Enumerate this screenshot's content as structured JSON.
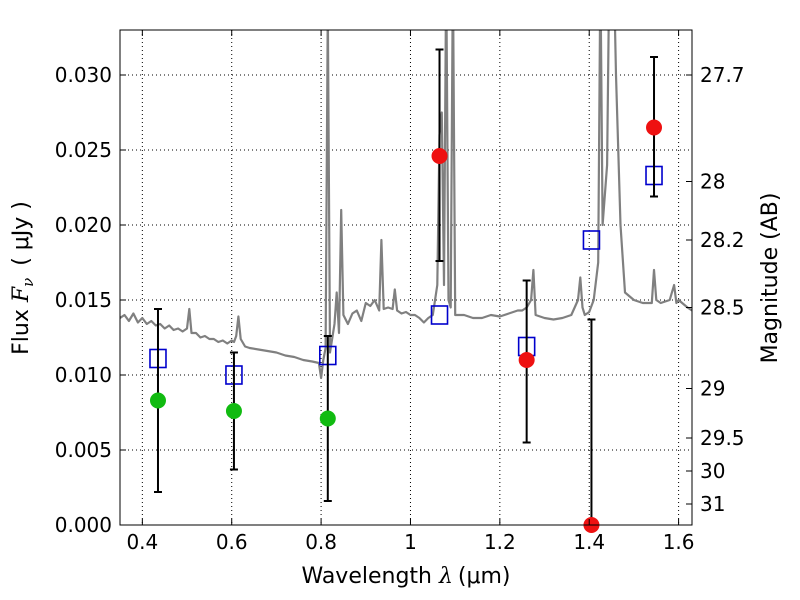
{
  "chart_data": {
    "type": "scatter",
    "xlabel": {
      "prefix": "Wavelength  ",
      "symbol": "λ",
      "unit": "(μm)"
    },
    "ylabel": {
      "prefix": "Flux  ",
      "symbol": "F",
      "sub": "ν",
      "unit": "( μJy )"
    },
    "y2label": "Magnitude (AB)",
    "xlim": [
      0.35,
      1.63
    ],
    "ylim": [
      0.0,
      0.033
    ],
    "grid": true,
    "x_ticks": [
      0.4,
      0.6,
      0.8,
      1.0,
      1.2,
      1.4,
      1.6
    ],
    "x_tick_labels": [
      "0.4",
      "0.6",
      "0.8",
      "1",
      "1.2",
      "1.4",
      "1.6"
    ],
    "y_ticks": [
      0.0,
      0.005,
      0.01,
      0.015,
      0.02,
      0.025,
      0.03
    ],
    "y_tick_labels": [
      "0.000",
      "0.005",
      "0.010",
      "0.015",
      "0.020",
      "0.025",
      "0.030"
    ],
    "mag_ticks": [
      {
        "label": "27.7",
        "flux": 0.03
      },
      {
        "label": "28",
        "flux": 0.0229
      },
      {
        "label": "28.2",
        "flux": 0.019
      },
      {
        "label": "28.5",
        "flux": 0.0145
      },
      {
        "label": "29",
        "flux": 0.0091
      },
      {
        "label": "29.5",
        "flux": 0.0058
      },
      {
        "label": "30",
        "flux": 0.0036
      },
      {
        "label": "31",
        "flux": 0.0014
      }
    ],
    "colors": {
      "spectrum": "#808080",
      "model_box": "#0000cc",
      "detection": "#ee1111",
      "nondetection": "#11bb11",
      "errorbar": "#000000"
    },
    "spectrum": {
      "name": "",
      "points": [
        [
          0.35,
          0.0138
        ],
        [
          0.36,
          0.014
        ],
        [
          0.37,
          0.0136
        ],
        [
          0.38,
          0.0141
        ],
        [
          0.39,
          0.0135
        ],
        [
          0.4,
          0.0138
        ],
        [
          0.41,
          0.0134
        ],
        [
          0.42,
          0.0136
        ],
        [
          0.43,
          0.0133
        ],
        [
          0.44,
          0.0134
        ],
        [
          0.45,
          0.0131
        ],
        [
          0.46,
          0.0133
        ],
        [
          0.47,
          0.013
        ],
        [
          0.48,
          0.0131
        ],
        [
          0.49,
          0.0129
        ],
        [
          0.5,
          0.0131
        ],
        [
          0.505,
          0.0144
        ],
        [
          0.51,
          0.0128
        ],
        [
          0.52,
          0.0128
        ],
        [
          0.53,
          0.0125
        ],
        [
          0.54,
          0.0126
        ],
        [
          0.55,
          0.0124
        ],
        [
          0.56,
          0.0124
        ],
        [
          0.57,
          0.0122
        ],
        [
          0.58,
          0.0123
        ],
        [
          0.59,
          0.0121
        ],
        [
          0.6,
          0.0123
        ],
        [
          0.605,
          0.0122
        ],
        [
          0.61,
          0.0126
        ],
        [
          0.615,
          0.0139
        ],
        [
          0.62,
          0.0124
        ],
        [
          0.63,
          0.0119
        ],
        [
          0.64,
          0.0118
        ],
        [
          0.66,
          0.0117
        ],
        [
          0.68,
          0.0116
        ],
        [
          0.7,
          0.0115
        ],
        [
          0.72,
          0.0113
        ],
        [
          0.74,
          0.0112
        ],
        [
          0.76,
          0.011
        ],
        [
          0.78,
          0.0109
        ],
        [
          0.795,
          0.0108
        ],
        [
          0.8,
          0.0098
        ],
        [
          0.805,
          0.011
        ],
        [
          0.81,
          0.0118
        ],
        [
          0.815,
          0.0345
        ],
        [
          0.82,
          0.0115
        ],
        [
          0.83,
          0.0134
        ],
        [
          0.835,
          0.0155
        ],
        [
          0.84,
          0.0128
        ],
        [
          0.845,
          0.021
        ],
        [
          0.85,
          0.014
        ],
        [
          0.86,
          0.0134
        ],
        [
          0.87,
          0.0141
        ],
        [
          0.88,
          0.0143
        ],
        [
          0.89,
          0.0136
        ],
        [
          0.9,
          0.0148
        ],
        [
          0.91,
          0.0146
        ],
        [
          0.92,
          0.015
        ],
        [
          0.93,
          0.0143
        ],
        [
          0.935,
          0.019
        ],
        [
          0.94,
          0.0144
        ],
        [
          0.95,
          0.0145
        ],
        [
          0.96,
          0.0144
        ],
        [
          0.965,
          0.0157
        ],
        [
          0.97,
          0.0143
        ],
        [
          0.98,
          0.0141
        ],
        [
          0.99,
          0.0142
        ],
        [
          1.0,
          0.014
        ],
        [
          1.01,
          0.014
        ],
        [
          1.02,
          0.0138
        ],
        [
          1.03,
          0.0135
        ],
        [
          1.04,
          0.0138
        ],
        [
          1.05,
          0.014
        ],
        [
          1.06,
          0.016
        ],
        [
          1.065,
          0.026
        ],
        [
          1.07,
          0.0275
        ],
        [
          1.075,
          0.016
        ],
        [
          1.08,
          0.037
        ],
        [
          1.085,
          0.015
        ],
        [
          1.09,
          0.0145
        ],
        [
          1.095,
          0.037
        ],
        [
          1.1,
          0.014
        ],
        [
          1.12,
          0.014
        ],
        [
          1.14,
          0.0138
        ],
        [
          1.16,
          0.0138
        ],
        [
          1.18,
          0.014
        ],
        [
          1.2,
          0.0139
        ],
        [
          1.22,
          0.0141
        ],
        [
          1.24,
          0.0143
        ],
        [
          1.25,
          0.0143
        ],
        [
          1.26,
          0.0145
        ],
        [
          1.27,
          0.015
        ],
        [
          1.275,
          0.017
        ],
        [
          1.28,
          0.014
        ],
        [
          1.3,
          0.0138
        ],
        [
          1.32,
          0.0137
        ],
        [
          1.34,
          0.0138
        ],
        [
          1.36,
          0.014
        ],
        [
          1.375,
          0.015
        ],
        [
          1.38,
          0.0165
        ],
        [
          1.385,
          0.0145
        ],
        [
          1.39,
          0.014
        ],
        [
          1.4,
          0.0142
        ],
        [
          1.41,
          0.015
        ],
        [
          1.42,
          0.0175
        ],
        [
          1.425,
          0.037
        ],
        [
          1.43,
          0.02
        ],
        [
          1.44,
          0.024
        ],
        [
          1.445,
          0.037
        ],
        [
          1.45,
          0.037
        ],
        [
          1.455,
          0.037
        ],
        [
          1.46,
          0.03
        ],
        [
          1.47,
          0.02
        ],
        [
          1.48,
          0.0155
        ],
        [
          1.5,
          0.015
        ],
        [
          1.52,
          0.0148
        ],
        [
          1.54,
          0.0148
        ],
        [
          1.545,
          0.017
        ],
        [
          1.55,
          0.015
        ],
        [
          1.56,
          0.0148
        ],
        [
          1.58,
          0.015
        ],
        [
          1.59,
          0.016
        ],
        [
          1.595,
          0.0148
        ],
        [
          1.6,
          0.015
        ],
        [
          1.62,
          0.0145
        ],
        [
          1.63,
          0.0143
        ]
      ]
    },
    "model_boxes": [
      {
        "x": 0.435,
        "y": 0.0111
      },
      {
        "x": 0.605,
        "y": 0.01
      },
      {
        "x": 0.815,
        "y": 0.0113
      },
      {
        "x": 1.065,
        "y": 0.014
      },
      {
        "x": 1.26,
        "y": 0.0119
      },
      {
        "x": 1.405,
        "y": 0.019
      },
      {
        "x": 1.545,
        "y": 0.0233
      }
    ],
    "detections": [
      {
        "x": 1.065,
        "y": 0.0246,
        "ylo": 0.0176,
        "yhi": 0.0317
      },
      {
        "x": 1.26,
        "y": 0.011,
        "ylo": 0.0055,
        "yhi": 0.0163
      },
      {
        "x": 1.405,
        "y": 0.0,
        "ylo": 0.0,
        "yhi": 0.0137
      },
      {
        "x": 1.545,
        "y": 0.0265,
        "ylo": 0.0219,
        "yhi": 0.0312
      }
    ],
    "nondetections": [
      {
        "x": 0.435,
        "y": 0.0083,
        "ylo": 0.0022,
        "yhi": 0.0144
      },
      {
        "x": 0.605,
        "y": 0.0076,
        "ylo": 0.0037,
        "yhi": 0.0115
      },
      {
        "x": 0.815,
        "y": 0.0071,
        "ylo": 0.0016,
        "yhi": 0.0126
      }
    ]
  }
}
